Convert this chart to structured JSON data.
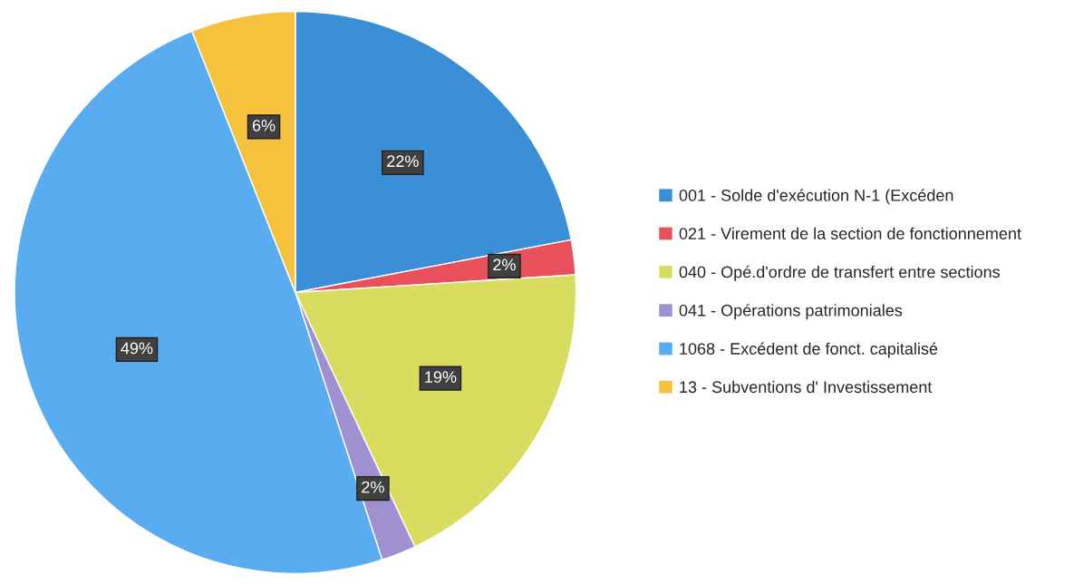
{
  "chart_data": {
    "type": "pie",
    "categories": [
      "001 - Solde d'exécution N-1 (Excéden",
      "021 - Virement de la section de fonctionnement",
      "040 - Opé.d'ordre de transfert entre sections",
      "041 - Opérations patrimoniales",
      "1068 - Excédent de fonct. capitalisé",
      "13 - Subventions d' Investissement"
    ],
    "values": [
      22,
      2,
      19,
      2,
      49,
      6
    ],
    "colors": [
      "#3b8fd6",
      "#e8505b",
      "#d9dc5e",
      "#9f90d2",
      "#5aacf0",
      "#f6c23e"
    ],
    "value_labels": [
      "22%",
      "2%",
      "19%",
      "2%",
      "49%",
      "6%"
    ],
    "legend": "right"
  }
}
